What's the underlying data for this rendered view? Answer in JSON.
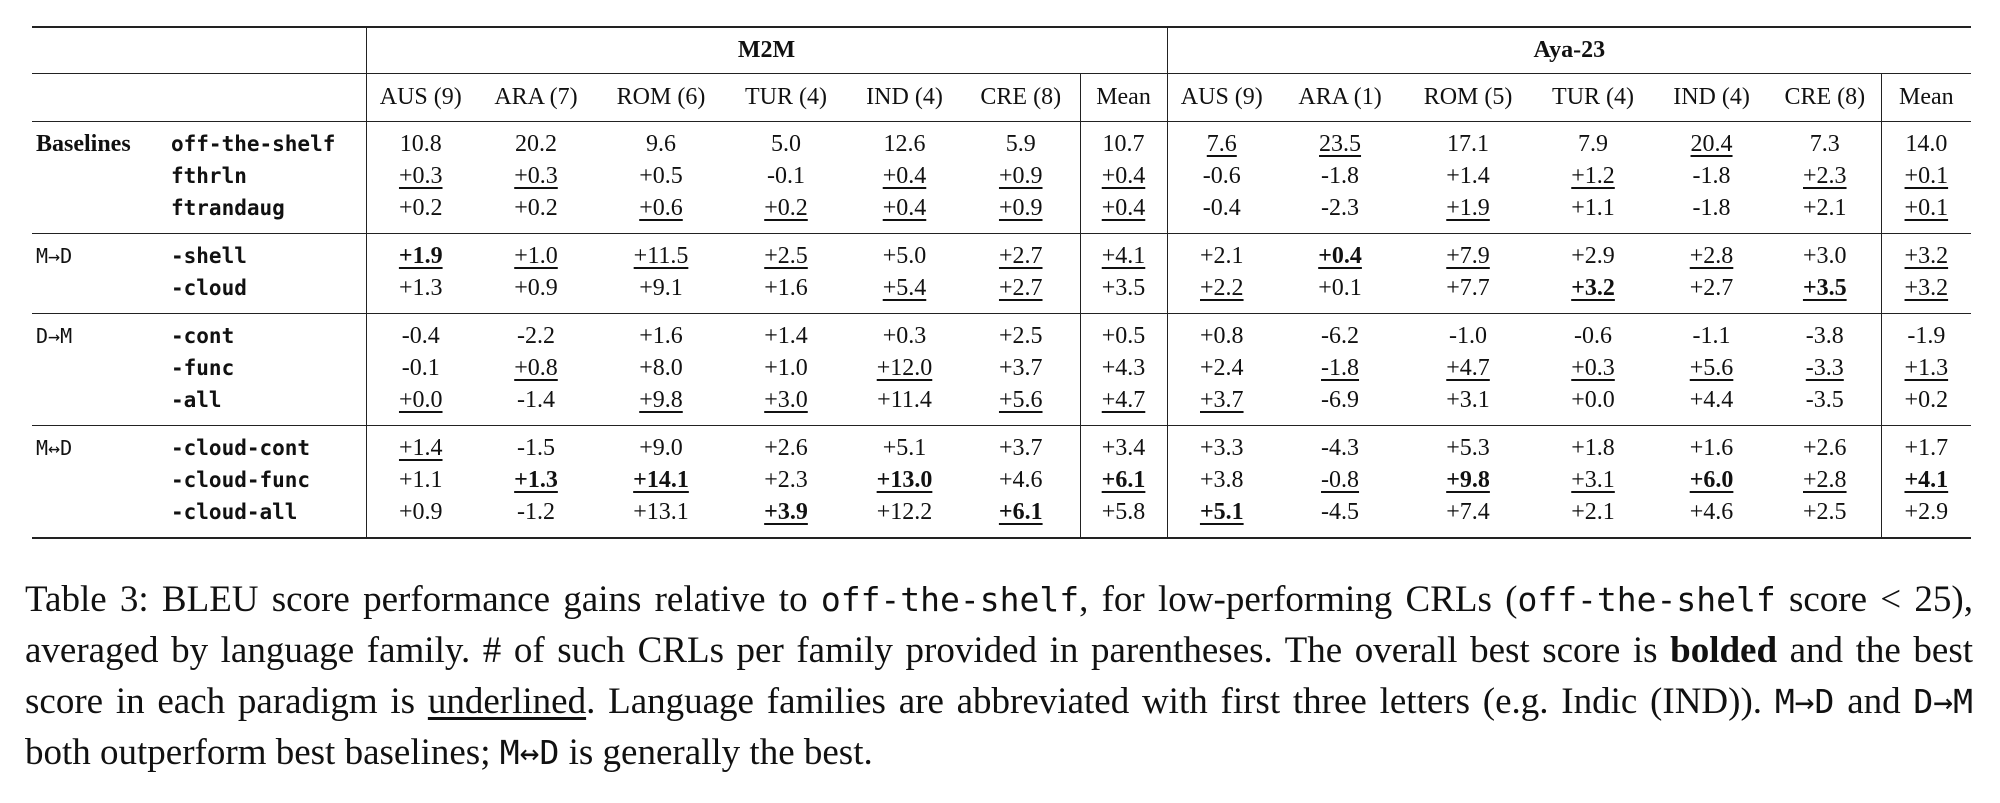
{
  "table": {
    "groups": [
      "M2M",
      "Aya-23"
    ],
    "columns": [
      "AUS (9)",
      "ARA (7)",
      "ROM (6)",
      "TUR (4)",
      "IND (4)",
      "CRE (8)",
      "Mean",
      "AUS (9)",
      "ARA (1)",
      "ROM (5)",
      "TUR (4)",
      "IND (4)",
      "CRE (8)",
      "Mean"
    ],
    "sections": [
      {
        "label": "Baselines",
        "bold": true,
        "rows": [
          {
            "name": "off-the-shelf",
            "cells": [
              "10.8",
              "20.2",
              "9.6",
              "5.0",
              "12.6",
              "5.9",
              "10.7",
              {
                "text": "7.6",
                "underline": true
              },
              {
                "text": "23.5",
                "underline": true
              },
              "17.1",
              "7.9",
              {
                "text": "20.4",
                "underline": true
              },
              "7.3",
              "14.0"
            ]
          },
          {
            "name": "fthrln",
            "cells": [
              {
                "text": "+0.3",
                "underline": true
              },
              {
                "text": "+0.3",
                "underline": true
              },
              "+0.5",
              "-0.1",
              {
                "text": "+0.4",
                "underline": true
              },
              {
                "text": "+0.9",
                "underline": true
              },
              {
                "text": "+0.4",
                "underline": true
              },
              "-0.6",
              "-1.8",
              "+1.4",
              {
                "text": "+1.2",
                "underline": true
              },
              "-1.8",
              {
                "text": "+2.3",
                "underline": true
              },
              {
                "text": "+0.1",
                "underline": true
              }
            ]
          },
          {
            "name": "ftrandaug",
            "cells": [
              "+0.2",
              "+0.2",
              {
                "text": "+0.6",
                "underline": true
              },
              {
                "text": "+0.2",
                "underline": true
              },
              {
                "text": "+0.4",
                "underline": true
              },
              {
                "text": "+0.9",
                "underline": true
              },
              {
                "text": "+0.4",
                "underline": true
              },
              "-0.4",
              "-2.3",
              {
                "text": "+1.9",
                "underline": true
              },
              "+1.1",
              "-1.8",
              "+2.1",
              {
                "text": "+0.1",
                "underline": true
              }
            ]
          }
        ]
      },
      {
        "label": "M→D",
        "mono": true,
        "rows": [
          {
            "name": "-shell",
            "cells": [
              {
                "text": "+1.9",
                "bold": true,
                "underline": true
              },
              {
                "text": "+1.0",
                "underline": true
              },
              {
                "text": "+11.5",
                "underline": true
              },
              {
                "text": "+2.5",
                "underline": true
              },
              "+5.0",
              {
                "text": "+2.7",
                "underline": true
              },
              {
                "text": "+4.1",
                "underline": true
              },
              "+2.1",
              {
                "text": "+0.4",
                "bold": true,
                "underline": true
              },
              {
                "text": "+7.9",
                "underline": true
              },
              "+2.9",
              {
                "text": "+2.8",
                "underline": true
              },
              "+3.0",
              {
                "text": "+3.2",
                "underline": true
              }
            ]
          },
          {
            "name": "-cloud",
            "cells": [
              "+1.3",
              "+0.9",
              "+9.1",
              "+1.6",
              {
                "text": "+5.4",
                "underline": true
              },
              {
                "text": "+2.7",
                "underline": true
              },
              "+3.5",
              {
                "text": "+2.2",
                "underline": true
              },
              "+0.1",
              "+7.7",
              {
                "text": "+3.2",
                "bold": true,
                "underline": true
              },
              "+2.7",
              {
                "text": "+3.5",
                "bold": true,
                "underline": true
              },
              {
                "text": "+3.2",
                "underline": true
              }
            ]
          }
        ]
      },
      {
        "label": "D→M",
        "mono": true,
        "rows": [
          {
            "name": "-cont",
            "cells": [
              "-0.4",
              "-2.2",
              "+1.6",
              "+1.4",
              "+0.3",
              "+2.5",
              "+0.5",
              "+0.8",
              "-6.2",
              "-1.0",
              "-0.6",
              "-1.1",
              "-3.8",
              "-1.9"
            ]
          },
          {
            "name": "-func",
            "cells": [
              "-0.1",
              {
                "text": "+0.8",
                "underline": true
              },
              "+8.0",
              "+1.0",
              {
                "text": "+12.0",
                "underline": true
              },
              "+3.7",
              "+4.3",
              "+2.4",
              {
                "text": "-1.8",
                "underline": true
              },
              {
                "text": "+4.7",
                "underline": true
              },
              {
                "text": "+0.3",
                "underline": true
              },
              {
                "text": "+5.6",
                "underline": true
              },
              {
                "text": "-3.3",
                "underline": true
              },
              {
                "text": "+1.3",
                "underline": true
              }
            ]
          },
          {
            "name": "-all",
            "cells": [
              {
                "text": "+0.0",
                "underline": true
              },
              "-1.4",
              {
                "text": "+9.8",
                "underline": true
              },
              {
                "text": "+3.0",
                "underline": true
              },
              "+11.4",
              {
                "text": "+5.6",
                "underline": true
              },
              {
                "text": "+4.7",
                "underline": true
              },
              {
                "text": "+3.7",
                "underline": true
              },
              "-6.9",
              "+3.1",
              "+0.0",
              "+4.4",
              "-3.5",
              "+0.2"
            ]
          }
        ]
      },
      {
        "label": "M↔D",
        "mono": true,
        "rows": [
          {
            "name": "-cloud-cont",
            "cells": [
              {
                "text": "+1.4",
                "underline": true
              },
              "-1.5",
              "+9.0",
              "+2.6",
              "+5.1",
              "+3.7",
              "+3.4",
              "+3.3",
              "-4.3",
              "+5.3",
              "+1.8",
              "+1.6",
              "+2.6",
              "+1.7"
            ]
          },
          {
            "name": "-cloud-func",
            "cells": [
              "+1.1",
              {
                "text": "+1.3",
                "bold": true,
                "underline": true
              },
              {
                "text": "+14.1",
                "bold": true,
                "underline": true
              },
              "+2.3",
              {
                "text": "+13.0",
                "bold": true,
                "underline": true
              },
              "+4.6",
              {
                "text": "+6.1",
                "bold": true,
                "underline": true
              },
              "+3.8",
              {
                "text": "-0.8",
                "underline": true
              },
              {
                "text": "+9.8",
                "bold": true,
                "underline": true
              },
              {
                "text": "+3.1",
                "underline": true
              },
              {
                "text": "+6.0",
                "bold": true,
                "underline": true
              },
              {
                "text": "+2.8",
                "underline": true
              },
              {
                "text": "+4.1",
                "bold": true,
                "underline": true
              }
            ]
          },
          {
            "name": "-cloud-all",
            "cells": [
              "+0.9",
              "-1.2",
              "+13.1",
              {
                "text": "+3.9",
                "bold": true,
                "underline": true
              },
              "+12.2",
              {
                "text": "+6.1",
                "bold": true,
                "underline": true
              },
              "+5.8",
              {
                "text": "+5.1",
                "bold": true,
                "underline": true
              },
              "-4.5",
              "+7.4",
              "+2.1",
              "+4.6",
              "+2.5",
              "+2.9"
            ]
          }
        ]
      }
    ]
  },
  "caption": [
    {
      "text": "Table 3: BLEU score performance gains relative to "
    },
    {
      "text": "off-the-shelf",
      "style": "mono"
    },
    {
      "text": ", for low-performing CRLs ("
    },
    {
      "text": "off-the-shelf",
      "style": "mono"
    },
    {
      "text": " score < 25), averaged by language family. # of such CRLs per family provided in parentheses. The overall best score is "
    },
    {
      "text": "bolded",
      "style": "bold"
    },
    {
      "text": " and the best score in each paradigm is "
    },
    {
      "text": "underlined",
      "style": "underline"
    },
    {
      "text": ". Language families are abbreviated with first three letters (e.g. Indic (IND)). "
    },
    {
      "text": "M→D",
      "style": "mono"
    },
    {
      "text": " and "
    },
    {
      "text": "D→M",
      "style": "mono"
    },
    {
      "text": " both outperform best baselines; "
    },
    {
      "text": "M↔D",
      "style": "mono"
    },
    {
      "text": " is generally the best."
    }
  ]
}
